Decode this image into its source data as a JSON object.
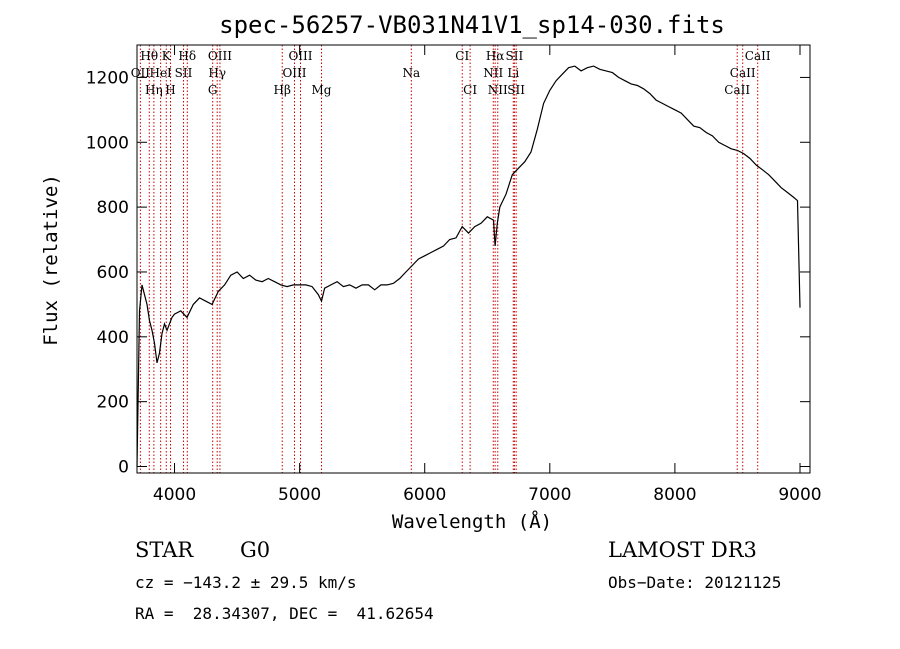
{
  "chart_data": {
    "type": "line",
    "title": "spec-56257-VB031N41V1_sp14-030.fits",
    "xlabel": "Wavelength (Å)",
    "ylabel": "Flux (relative)",
    "xlim": [
      3700,
      9080
    ],
    "ylim": [
      -20,
      1300
    ],
    "x_ticks": [
      4000,
      5000,
      6000,
      7000,
      8000,
      9000
    ],
    "y_ticks": [
      0,
      200,
      400,
      600,
      800,
      1000,
      1200
    ],
    "series": [
      {
        "name": "spectrum",
        "x": [
          3700,
          3720,
          3740,
          3760,
          3780,
          3800,
          3820,
          3840,
          3860,
          3880,
          3900,
          3920,
          3940,
          3960,
          3980,
          4000,
          4050,
          4100,
          4150,
          4200,
          4250,
          4300,
          4350,
          4400,
          4450,
          4500,
          4550,
          4600,
          4650,
          4700,
          4750,
          4800,
          4850,
          4900,
          4950,
          5000,
          5050,
          5100,
          5150,
          5175,
          5200,
          5250,
          5300,
          5350,
          5400,
          5450,
          5500,
          5550,
          5600,
          5650,
          5700,
          5750,
          5800,
          5850,
          5900,
          5950,
          6000,
          6050,
          6100,
          6150,
          6200,
          6250,
          6300,
          6350,
          6400,
          6450,
          6500,
          6550,
          6563,
          6580,
          6600,
          6650,
          6700,
          6750,
          6800,
          6850,
          6900,
          6950,
          7000,
          7050,
          7100,
          7150,
          7200,
          7250,
          7300,
          7350,
          7400,
          7450,
          7500,
          7550,
          7600,
          7650,
          7700,
          7750,
          7800,
          7850,
          7900,
          7950,
          8000,
          8050,
          8100,
          8150,
          8200,
          8250,
          8300,
          8350,
          8400,
          8450,
          8500,
          8550,
          8600,
          8650,
          8700,
          8750,
          8800,
          8850,
          8900,
          8950,
          8980,
          9000
        ],
        "y": [
          0,
          480,
          560,
          530,
          500,
          450,
          420,
          380,
          320,
          350,
          410,
          440,
          420,
          440,
          460,
          470,
          480,
          460,
          500,
          520,
          510,
          500,
          540,
          560,
          590,
          600,
          580,
          590,
          575,
          570,
          580,
          570,
          560,
          555,
          560,
          560,
          560,
          555,
          530,
          510,
          550,
          560,
          570,
          555,
          560,
          550,
          560,
          560,
          545,
          560,
          560,
          565,
          580,
          600,
          620,
          640,
          650,
          660,
          670,
          680,
          700,
          705,
          740,
          720,
          740,
          750,
          770,
          760,
          680,
          750,
          800,
          840,
          900,
          920,
          940,
          970,
          1040,
          1120,
          1160,
          1190,
          1210,
          1230,
          1235,
          1220,
          1230,
          1235,
          1225,
          1220,
          1215,
          1200,
          1190,
          1180,
          1175,
          1165,
          1150,
          1130,
          1120,
          1110,
          1100,
          1090,
          1070,
          1050,
          1045,
          1030,
          1020,
          1000,
          990,
          980,
          975,
          965,
          950,
          930,
          915,
          900,
          880,
          860,
          845,
          830,
          820,
          490
        ]
      }
    ],
    "spectral_lines": [
      {
        "label": "Hθ",
        "x": 3798,
        "row": 1
      },
      {
        "label": "K",
        "x": 3934,
        "row": 1
      },
      {
        "label": "Hδ",
        "x": 4102,
        "row": 1
      },
      {
        "label": "OIII",
        "x": 4363,
        "row": 1
      },
      {
        "label": "OIII",
        "x": 5007,
        "row": 1
      },
      {
        "label": "CI",
        "x": 6300,
        "row": 1
      },
      {
        "label": "Hα",
        "x": 6563,
        "row": 1
      },
      {
        "label": "SII",
        "x": 6717,
        "row": 1
      },
      {
        "label": "CaII",
        "x": 8662,
        "row": 1
      },
      {
        "label": "OII",
        "x": 3727,
        "row": 2
      },
      {
        "label": "HeI",
        "x": 3889,
        "row": 2
      },
      {
        "label": "SII",
        "x": 4072,
        "row": 2
      },
      {
        "label": "Hγ",
        "x": 4341,
        "row": 2
      },
      {
        "label": "OIII",
        "x": 4959,
        "row": 2
      },
      {
        "label": "NII",
        "x": 6548,
        "row": 2
      },
      {
        "label": "Li",
        "x": 6708,
        "row": 2
      },
      {
        "label": "CaII",
        "x": 8542,
        "row": 2
      },
      {
        "label": "Hη",
        "x": 3835,
        "row": 3
      },
      {
        "label": "H",
        "x": 3968,
        "row": 3
      },
      {
        "label": "G",
        "x": 4305,
        "row": 3
      },
      {
        "label": "Hβ",
        "x": 4861,
        "row": 3
      },
      {
        "label": "Mg",
        "x": 5175,
        "row": 3
      },
      {
        "label": "Na",
        "x": 5893,
        "row": 2
      },
      {
        "label": "CI",
        "x": 6363,
        "row": 3
      },
      {
        "label": "NII",
        "x": 6584,
        "row": 3
      },
      {
        "label": "SII",
        "x": 6731,
        "row": 3
      },
      {
        "label": "CaII",
        "x": 8498,
        "row": 3
      }
    ]
  },
  "info": {
    "object_class": "STAR",
    "subclass": "G0",
    "survey": "LAMOST DR3",
    "velocity": "cz = −143.2 ± 29.5 km/s",
    "obs_date": "Obs−Date: 20121125",
    "coords": "RA =  28.34307, DEC =  41.62654"
  },
  "colors": {
    "line": "#000000",
    "marker": "#cc0000"
  }
}
